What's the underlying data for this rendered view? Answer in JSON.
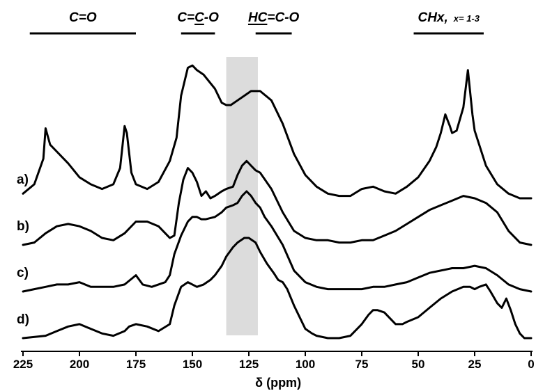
{
  "chart_data": {
    "type": "line",
    "xlabel": "δ (ppm)",
    "x_reversed": true,
    "xlim": [
      225,
      0
    ],
    "x_ticks": [
      225,
      200,
      175,
      150,
      125,
      100,
      75,
      50,
      25,
      0
    ],
    "y_ticks_shown": false,
    "highlight_band": {
      "from": 135,
      "to": 121,
      "color": "#dcdcdc"
    },
    "region_markers": [
      {
        "label": "C=O",
        "from": 222,
        "to": 175
      },
      {
        "label": "C=C-O",
        "underlined": "C",
        "from": 155,
        "to": 140
      },
      {
        "label": "HC=C-O",
        "underlined": "HC",
        "from": 122,
        "to": 106
      },
      {
        "label": "CHx,",
        "sublabel": "x= 1-3",
        "from": 52,
        "to": 21
      }
    ],
    "series": [
      {
        "name": "a)",
        "offset": 3.0,
        "x": [
          225,
          220,
          216,
          215,
          213,
          210,
          205,
          200,
          195,
          190,
          185,
          182,
          180,
          179,
          177,
          175,
          170,
          165,
          160,
          157,
          155,
          152,
          150,
          148,
          145,
          140,
          137,
          135,
          133,
          130,
          127,
          124,
          120,
          115,
          110,
          105,
          100,
          95,
          90,
          85,
          80,
          75,
          70,
          65,
          60,
          55,
          50,
          45,
          42,
          40,
          38,
          36,
          35,
          33,
          30,
          28,
          26,
          25,
          23,
          20,
          15,
          10,
          5,
          0
        ],
        "y": [
          0.1,
          0.3,
          0.85,
          1.5,
          1.15,
          1.0,
          0.75,
          0.45,
          0.3,
          0.2,
          0.3,
          0.65,
          1.55,
          1.4,
          0.55,
          0.3,
          0.2,
          0.35,
          0.8,
          1.3,
          2.2,
          2.8,
          2.85,
          2.75,
          2.65,
          2.35,
          2.05,
          2.0,
          2.0,
          2.1,
          2.2,
          2.3,
          2.3,
          2.1,
          1.6,
          0.95,
          0.5,
          0.25,
          0.1,
          0.05,
          0.05,
          0.2,
          0.25,
          0.15,
          0.1,
          0.25,
          0.45,
          0.8,
          1.1,
          1.4,
          1.8,
          1.55,
          1.4,
          1.45,
          1.95,
          2.75,
          1.8,
          1.45,
          1.15,
          0.7,
          0.3,
          0.1,
          0.0,
          0.0
        ]
      },
      {
        "name": "b)",
        "offset": 2.0,
        "x": [
          225,
          220,
          215,
          210,
          205,
          200,
          195,
          190,
          185,
          180,
          175,
          170,
          165,
          160,
          158,
          156,
          154,
          152,
          150,
          148,
          146,
          144,
          142,
          140,
          137,
          135,
          132,
          130,
          128,
          126,
          124,
          122,
          120,
          115,
          110,
          105,
          100,
          95,
          90,
          85,
          80,
          75,
          70,
          65,
          60,
          55,
          50,
          45,
          40,
          35,
          30,
          25,
          20,
          15,
          10,
          5,
          0
        ],
        "y": [
          0.0,
          0.05,
          0.25,
          0.4,
          0.45,
          0.4,
          0.3,
          0.15,
          0.1,
          0.25,
          0.5,
          0.5,
          0.4,
          0.15,
          0.2,
          0.9,
          1.4,
          1.65,
          1.55,
          1.35,
          1.05,
          1.15,
          1.0,
          1.05,
          1.15,
          1.2,
          1.25,
          1.5,
          1.7,
          1.8,
          1.7,
          1.6,
          1.55,
          1.2,
          0.7,
          0.3,
          0.15,
          0.1,
          0.1,
          0.05,
          0.05,
          0.1,
          0.1,
          0.2,
          0.3,
          0.45,
          0.6,
          0.75,
          0.85,
          0.95,
          1.05,
          1.0,
          0.9,
          0.7,
          0.3,
          0.05,
          0.0
        ]
      },
      {
        "name": "c)",
        "offset": 1.0,
        "x": [
          225,
          220,
          215,
          210,
          205,
          200,
          195,
          190,
          185,
          180,
          175,
          172,
          168,
          165,
          162,
          160,
          158,
          155,
          152,
          150,
          148,
          146,
          144,
          140,
          137,
          135,
          132,
          130,
          128,
          126,
          124,
          122,
          120,
          118,
          115,
          110,
          105,
          100,
          95,
          90,
          85,
          80,
          75,
          70,
          65,
          60,
          55,
          50,
          45,
          40,
          35,
          30,
          25,
          20,
          15,
          10,
          5,
          0
        ],
        "y": [
          0.0,
          0.05,
          0.1,
          0.15,
          0.15,
          0.2,
          0.1,
          0.1,
          0.1,
          0.15,
          0.35,
          0.15,
          0.1,
          0.15,
          0.2,
          0.35,
          0.8,
          1.2,
          1.5,
          1.6,
          1.6,
          1.55,
          1.55,
          1.6,
          1.7,
          1.8,
          1.85,
          1.9,
          2.05,
          2.15,
          2.05,
          1.9,
          1.8,
          1.6,
          1.4,
          1.0,
          0.45,
          0.2,
          0.1,
          0.05,
          0.05,
          0.05,
          0.05,
          0.1,
          0.1,
          0.15,
          0.2,
          0.3,
          0.4,
          0.45,
          0.5,
          0.5,
          0.55,
          0.5,
          0.35,
          0.15,
          0.05,
          0.0
        ]
      },
      {
        "name": "d)",
        "offset": 0.0,
        "x": [
          225,
          215,
          210,
          205,
          200,
          195,
          190,
          185,
          180,
          178,
          175,
          170,
          165,
          160,
          158,
          155,
          152,
          150,
          148,
          145,
          142,
          140,
          137,
          135,
          132,
          130,
          127,
          125,
          122,
          120,
          117,
          114,
          112,
          110,
          108,
          105,
          102,
          100,
          97,
          95,
          90,
          85,
          80,
          75,
          72,
          70,
          68,
          65,
          62,
          60,
          57,
          55,
          50,
          45,
          40,
          35,
          30,
          27,
          25,
          23,
          20,
          18,
          15,
          13,
          11,
          9,
          7,
          5,
          3,
          0
        ],
        "y": [
          0.0,
          0.05,
          0.15,
          0.25,
          0.3,
          0.2,
          0.1,
          0.05,
          0.15,
          0.25,
          0.3,
          0.25,
          0.15,
          0.3,
          0.7,
          1.1,
          1.2,
          1.15,
          1.1,
          1.15,
          1.25,
          1.35,
          1.55,
          1.75,
          1.95,
          2.05,
          2.15,
          2.15,
          2.05,
          1.85,
          1.6,
          1.4,
          1.25,
          1.2,
          1.05,
          0.7,
          0.4,
          0.2,
          0.1,
          0.05,
          0.0,
          0.0,
          0.05,
          0.3,
          0.5,
          0.6,
          0.6,
          0.55,
          0.4,
          0.3,
          0.3,
          0.35,
          0.45,
          0.65,
          0.85,
          1.0,
          1.1,
          1.1,
          1.05,
          1.1,
          1.15,
          1.0,
          0.75,
          0.65,
          0.85,
          0.6,
          0.3,
          0.1,
          0.0,
          0.0
        ]
      }
    ]
  }
}
